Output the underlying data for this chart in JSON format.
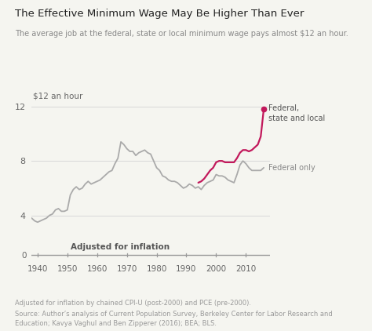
{
  "title": "The Effective Minimum Wage May Be Higher Than Ever",
  "subtitle": "The average job at the federal, state or local minimum wage pays almost $12 an hour.",
  "footnote1": "Adjusted for inflation by chained CPI-U (post-2000) and PCE (pre-2000).",
  "footnote2": "Source: Author’s analysis of Current Population Survey, Berkeley Center for Labor Research and",
  "footnote3": "Education; Kavya Vaghul and Ben Zipperer (2016); BEA; BLS.",
  "ylabel_text": "$12 an hour",
  "xlabel_text": "Adjusted for inflation",
  "yticks": [
    4,
    8,
    12
  ],
  "xticks": [
    1940,
    1950,
    1960,
    1970,
    1980,
    1990,
    2000,
    2010
  ],
  "ylim": [
    2.8,
    13.5
  ],
  "xlim": [
    1938,
    2018
  ],
  "bg_color": "#f5f5f0",
  "line_color_gray": "#aaaaaa",
  "line_color_pink": "#c2185b",
  "federal_label": "Federal only",
  "state_label": "Federal,\nstate and local",
  "federal_only_years": [
    1938,
    1939,
    1940,
    1941,
    1942,
    1943,
    1944,
    1945,
    1946,
    1947,
    1948,
    1949,
    1950,
    1951,
    1952,
    1953,
    1954,
    1955,
    1956,
    1957,
    1958,
    1959,
    1960,
    1961,
    1962,
    1963,
    1964,
    1965,
    1966,
    1967,
    1968,
    1969,
    1970,
    1971,
    1972,
    1973,
    1974,
    1975,
    1976,
    1977,
    1978,
    1979,
    1980,
    1981,
    1982,
    1983,
    1984,
    1985,
    1986,
    1987,
    1988,
    1989,
    1990,
    1991,
    1992,
    1993,
    1994,
    1995,
    1996,
    1997,
    1998,
    1999,
    2000,
    2001,
    2002,
    2003,
    2004,
    2005,
    2006,
    2007,
    2008,
    2009,
    2010,
    2011,
    2012,
    2013,
    2014,
    2015,
    2016
  ],
  "federal_only_values": [
    3.8,
    3.6,
    3.5,
    3.6,
    3.7,
    3.8,
    4.0,
    4.1,
    4.4,
    4.5,
    4.3,
    4.3,
    4.4,
    5.5,
    5.9,
    6.1,
    5.9,
    6.0,
    6.3,
    6.5,
    6.3,
    6.4,
    6.5,
    6.6,
    6.8,
    7.0,
    7.2,
    7.3,
    7.8,
    8.2,
    9.4,
    9.2,
    8.9,
    8.7,
    8.7,
    8.4,
    8.6,
    8.7,
    8.8,
    8.6,
    8.5,
    8.0,
    7.5,
    7.3,
    6.9,
    6.8,
    6.6,
    6.5,
    6.5,
    6.4,
    6.2,
    6.0,
    6.1,
    6.3,
    6.2,
    6.0,
    6.1,
    5.9,
    6.2,
    6.4,
    6.5,
    6.6,
    7.0,
    6.9,
    6.9,
    6.8,
    6.6,
    6.5,
    6.4,
    7.0,
    7.7,
    8.0,
    7.8,
    7.5,
    7.3,
    7.3,
    7.3,
    7.3,
    7.5
  ],
  "state_local_years": [
    1994,
    1995,
    1996,
    1997,
    1998,
    1999,
    2000,
    2001,
    2002,
    2003,
    2004,
    2005,
    2006,
    2007,
    2008,
    2009,
    2010,
    2011,
    2012,
    2013,
    2014,
    2015,
    2016
  ],
  "state_local_values": [
    6.4,
    6.5,
    6.7,
    7.0,
    7.3,
    7.5,
    7.9,
    8.0,
    8.0,
    7.9,
    7.9,
    7.9,
    7.9,
    8.2,
    8.6,
    8.8,
    8.8,
    8.7,
    8.8,
    9.0,
    9.2,
    9.8,
    11.8
  ],
  "endpoint_year": 2016,
  "endpoint_value": 11.8
}
